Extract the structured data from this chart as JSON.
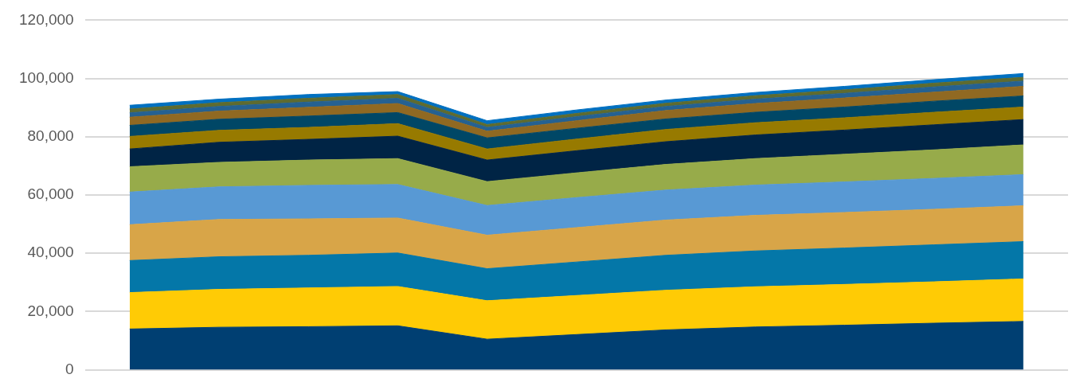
{
  "chart_data": {
    "type": "area",
    "stacked": true,
    "categories": [
      null,
      null,
      null,
      null,
      null,
      null,
      null,
      null,
      null,
      null,
      null
    ],
    "series": [
      {
        "color": "#003f72",
        "values": [
          14000,
          14600,
          14800,
          15100,
          10500,
          12100,
          13700,
          14700,
          15300,
          16000,
          16600
        ]
      },
      {
        "color": "#ffcb05",
        "values": [
          12500,
          13000,
          13300,
          13500,
          13200,
          13400,
          13600,
          13800,
          14000,
          14200,
          14600
        ]
      },
      {
        "color": "#0477a8",
        "values": [
          11000,
          11200,
          11200,
          11500,
          11000,
          11500,
          12000,
          12300,
          12500,
          12700,
          12800
        ]
      },
      {
        "color": "#d8a548",
        "values": [
          12300,
          12800,
          12500,
          12000,
          11500,
          11800,
          12100,
          12200,
          12200,
          12200,
          12300
        ]
      },
      {
        "color": "#5899d4",
        "values": [
          11200,
          11200,
          11500,
          11500,
          10200,
          10300,
          10300,
          10400,
          10500,
          10600,
          10700
        ]
      },
      {
        "color": "#97ab4a",
        "values": [
          8700,
          8400,
          8700,
          8900,
          8200,
          8500,
          8800,
          9100,
          9500,
          9800,
          10200
        ]
      },
      {
        "color": "#002445",
        "values": [
          6100,
          6900,
          7100,
          7700,
          7400,
          7600,
          7800,
          8100,
          8300,
          8600,
          8700
        ]
      },
      {
        "color": "#977a00",
        "values": [
          4300,
          4100,
          4100,
          4300,
          3800,
          4000,
          4200,
          4200,
          4200,
          4300,
          4300
        ]
      },
      {
        "color": "#004766",
        "values": [
          3800,
          3800,
          3900,
          3800,
          3800,
          3700,
          3600,
          3600,
          3700,
          3800,
          3800
        ]
      },
      {
        "color": "#906922",
        "values": [
          2800,
          2800,
          3000,
          3100,
          2300,
          2600,
          2900,
          3000,
          3100,
          3100,
          3300
        ]
      },
      {
        "color": "#256191",
        "values": [
          1500,
          1600,
          1800,
          1800,
          1300,
          1400,
          1400,
          1500,
          1600,
          1800,
          1800
        ]
      },
      {
        "color": "#5e6b30",
        "values": [
          1300,
          1300,
          1300,
          1300,
          1000,
          1100,
          1100,
          1200,
          1200,
          1300,
          1300
        ]
      },
      {
        "color": "#0070c0",
        "values": [
          1300,
          1200,
          1300,
          1000,
          1300,
          1200,
          1100,
          1100,
          1200,
          1200,
          1300
        ]
      }
    ],
    "ylim": [
      0,
      120000
    ],
    "yticks": [
      0,
      {
        "value": 20000,
        "label": "20,000"
      },
      {
        "value": 40000,
        "label": "40,000"
      },
      {
        "value": 60000,
        "label": "60,000"
      },
      {
        "value": 80000,
        "label": "80,000"
      },
      {
        "value": 100000,
        "label": "100,000"
      },
      {
        "value": 120000,
        "label": "120,000"
      }
    ],
    "grid": "y",
    "legend": false,
    "tick_labels": "y"
  }
}
